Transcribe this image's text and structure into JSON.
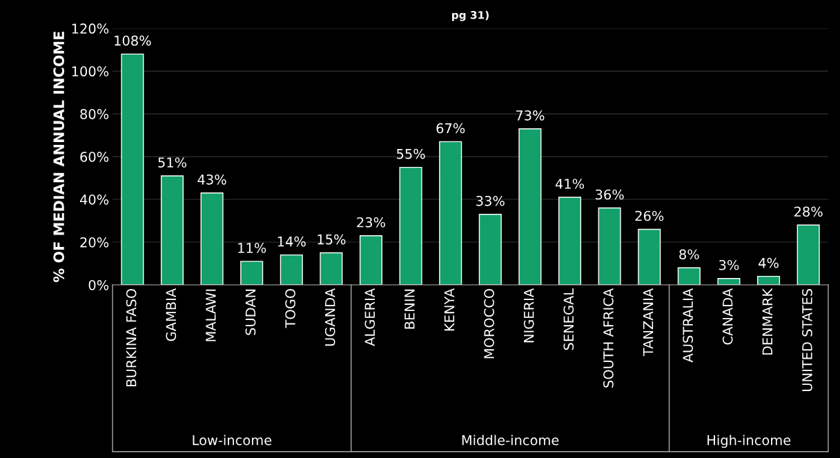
{
  "chart_data": {
    "type": "bar",
    "title": "pg 31)",
    "ylabel": "% OF MEDIAN ANNUAL INCOME",
    "categories": [
      "BURKINA FASO",
      "GAMBIA",
      "MALAWI",
      "SUDAN",
      "TOGO",
      "UGANDA",
      "ALGERIA",
      "BENIN",
      "KENYA",
      "MOROCCO",
      "NIGERIA",
      "SENEGAL",
      "SOUTH AFRICA",
      "TANZANIA",
      "AUSTRALIA",
      "CANADA",
      "DENMARK",
      "UNITED STATES"
    ],
    "values": [
      108,
      51,
      43,
      11,
      14,
      15,
      23,
      55,
      67,
      33,
      73,
      41,
      36,
      26,
      8,
      3,
      4,
      28
    ],
    "value_labels": [
      "108%",
      "51%",
      "43%",
      "11%",
      "14%",
      "15%",
      "23%",
      "55%",
      "67%",
      "33%",
      "73%",
      "41%",
      "36%",
      "26%",
      "8%",
      "3%",
      "4%",
      "28%"
    ],
    "color": "#13a06a",
    "ylim": [
      0,
      120
    ],
    "yticks": [
      {
        "value": 0,
        "label": "0%"
      },
      {
        "value": 20,
        "label": "20%"
      },
      {
        "value": 40,
        "label": "40%"
      },
      {
        "value": 60,
        "label": "60%"
      },
      {
        "value": 80,
        "label": "80%"
      },
      {
        "value": 100,
        "label": "100%"
      },
      {
        "value": 120,
        "label": "120%"
      }
    ],
    "grid": "y",
    "annotations": [
      "Low-income",
      "Middle-income",
      "High-income"
    ]
  }
}
